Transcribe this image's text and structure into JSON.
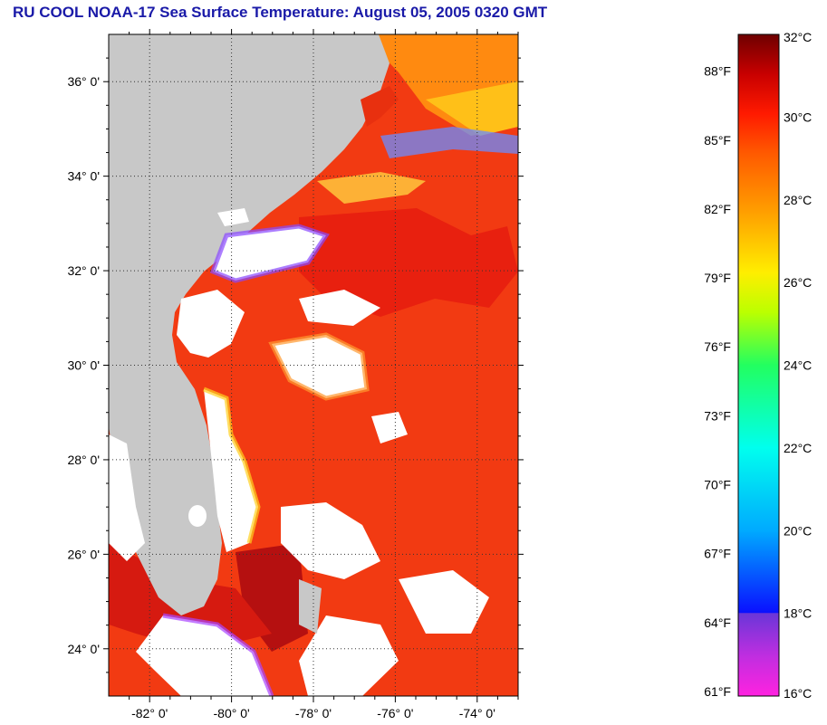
{
  "title": "RU COOL  NOAA-17  Sea Surface Temperature:  August 05, 2005 0320 GMT",
  "map": {
    "lat_range": [
      23.0,
      37.0
    ],
    "lon_range": [
      -83.0,
      -73.0
    ],
    "lat_ticks": [
      "36° 0'",
      "34° 0'",
      "32° 0'",
      "30° 0'",
      "28° 0'",
      "26° 0'",
      "24° 0'"
    ],
    "lon_ticks": [
      "-82° 0'",
      "-80° 0'",
      "-78° 0'",
      "-76° 0'",
      "-74° 0'"
    ],
    "land_color": "#c8c8c8",
    "cloud_color": "#ffffff",
    "water_base_color": "#f23a12",
    "grid": "dotted"
  },
  "colorbar": {
    "celsius_labels": [
      "32°C",
      "30°C",
      "28°C",
      "26°C",
      "24°C",
      "22°C",
      "20°C",
      "18°C",
      "16°C"
    ],
    "fahrenheit_labels": [
      "88°F",
      "85°F",
      "82°F",
      "79°F",
      "76°F",
      "73°F",
      "70°F",
      "67°F",
      "64°F",
      "61°F"
    ],
    "celsius_range": [
      16,
      32
    ],
    "colors": [
      "#ff22e0",
      "#8a3ad8",
      "#0a10ff",
      "#00aaff",
      "#00ffee",
      "#22ff60",
      "#bbff00",
      "#ffee00",
      "#ffa000",
      "#ff5a00",
      "#ff1a00",
      "#c80000",
      "#6e0000"
    ]
  }
}
